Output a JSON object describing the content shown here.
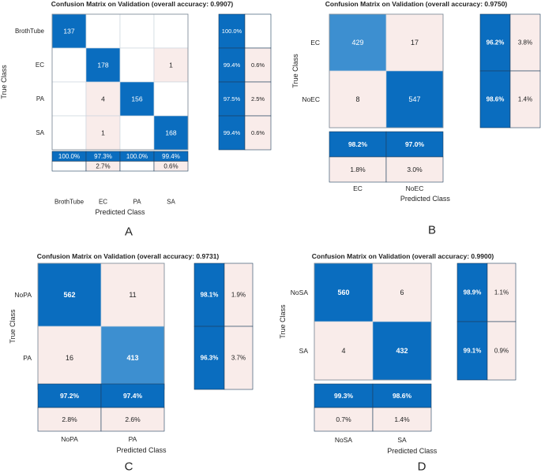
{
  "colors": {
    "dark": "#0a6dbf",
    "medium": "#3d8fd0",
    "light": "#f9ecea",
    "white": "#ffffff",
    "border": "#7b8794"
  },
  "chart_data": [
    {
      "type": "heatmap",
      "panel_label": "A",
      "title": "Confusion Matrix on Validation (overall accuracy: 0.9907)",
      "xlabel": "Predicted Class",
      "ylabel": "True Class",
      "classes": [
        "BrothTube",
        "EC",
        "PA",
        "SA"
      ],
      "matrix": [
        [
          "137",
          "",
          "",
          ""
        ],
        [
          "",
          "178",
          "",
          "1"
        ],
        [
          "",
          "4",
          "156",
          ""
        ],
        [
          "",
          "1",
          "",
          "168"
        ]
      ],
      "row_summary": [
        [
          "100.0%",
          ""
        ],
        [
          "99.4%",
          "0.6%"
        ],
        [
          "97.5%",
          "2.5%"
        ],
        [
          "99.4%",
          "0.6%"
        ]
      ],
      "col_summary": [
        [
          "100.0%",
          "97.3%",
          "100.0%",
          "99.4%"
        ],
        [
          "",
          "2.7%",
          "",
          "0.6%"
        ]
      ]
    },
    {
      "type": "heatmap",
      "panel_label": "B",
      "title": "Confusion Matrix on Validation (overall accuracy: 0.9750)",
      "xlabel": "Predicted Class",
      "ylabel": "True Class",
      "classes": [
        "EC",
        "NoEC"
      ],
      "matrix": [
        [
          "429",
          "17"
        ],
        [
          "8",
          "547"
        ]
      ],
      "row_summary": [
        [
          "96.2%",
          "3.8%"
        ],
        [
          "98.6%",
          "1.4%"
        ]
      ],
      "col_summary": [
        [
          "98.2%",
          "97.0%"
        ],
        [
          "1.8%",
          "3.0%"
        ]
      ]
    },
    {
      "type": "heatmap",
      "panel_label": "C",
      "title": "Confusion Matrix on Validation (overall accuracy: 0.9731)",
      "xlabel": "Predicted Class",
      "ylabel": "True Class",
      "classes": [
        "NoPA",
        "PA"
      ],
      "matrix": [
        [
          "562",
          "11"
        ],
        [
          "16",
          "413"
        ]
      ],
      "row_summary": [
        [
          "98.1%",
          "1.9%"
        ],
        [
          "96.3%",
          "3.7%"
        ]
      ],
      "col_summary": [
        [
          "97.2%",
          "97.4%"
        ],
        [
          "2.8%",
          "2.6%"
        ]
      ]
    },
    {
      "type": "heatmap",
      "panel_label": "D",
      "title": "Confusion Matrix on Validation (overall accuracy: 0.9900)",
      "xlabel": "Predicted Class",
      "ylabel": "True Class",
      "classes": [
        "NoSA",
        "SA"
      ],
      "matrix": [
        [
          "560",
          "6"
        ],
        [
          "4",
          "432"
        ]
      ],
      "row_summary": [
        [
          "98.9%",
          "1.1%"
        ],
        [
          "99.1%",
          "0.9%"
        ]
      ],
      "col_summary": [
        [
          "99.3%",
          "98.6%"
        ],
        [
          "0.7%",
          "1.4%"
        ]
      ]
    }
  ]
}
